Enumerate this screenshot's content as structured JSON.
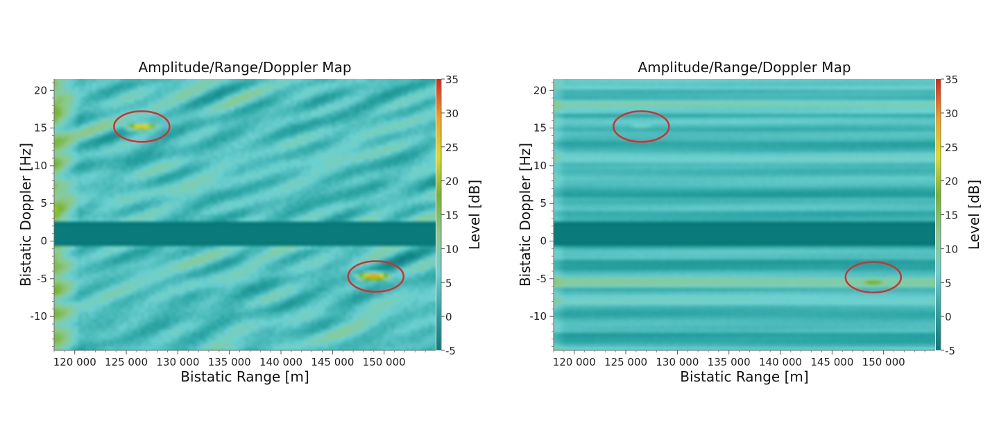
{
  "colors": {
    "background": "#ffffff",
    "ellipse": "#d42f2f",
    "colormap": [
      "#0a7a7a",
      "#2aa3a3",
      "#6cd0d0",
      "#8ec98a",
      "#74b22e",
      "#e0dc1f",
      "#f0a21e",
      "#d8261c"
    ]
  },
  "chart_data": [
    {
      "type": "heatmap",
      "title": "Amplitude/Range/Doppler Map",
      "xlabel": "Bistatic Range [m]",
      "ylabel": "Bistatic Doppler [Hz]",
      "colorbar_label": "Level [dB]",
      "xlim": [
        118000,
        155000
      ],
      "ylim": [
        -14.5,
        21.5
      ],
      "x_ticks": [
        120000,
        125000,
        130000,
        135000,
        140000,
        145000,
        150000
      ],
      "x_tick_labels": [
        "120 000",
        "125 000",
        "130 000",
        "135 000",
        "140 000",
        "145 000",
        "150 000"
      ],
      "y_ticks": [
        20,
        15,
        10,
        5,
        0,
        -5,
        -10
      ],
      "y_tick_labels": [
        "20",
        "15",
        "10",
        "5",
        "0",
        "-5",
        "-10"
      ],
      "colorbar_range": [
        -5,
        35
      ],
      "colorbar_ticks": [
        "35",
        "30",
        "25",
        "20",
        "15",
        "10",
        "5",
        "0",
        "-5"
      ],
      "pattern": "speckle",
      "targets": [
        {
          "range": 126500,
          "doppler": 15.2,
          "level": 26,
          "highlighted": true
        },
        {
          "range": 149000,
          "doppler": -4.7,
          "level": 31,
          "highlighted": true
        }
      ],
      "highlighted_regions": [
        {
          "range": 126500,
          "doppler": 15.2
        },
        {
          "range": 149200,
          "doppler": -4.7
        }
      ]
    },
    {
      "type": "heatmap",
      "title": "Amplitude/Range/Doppler Map",
      "xlabel": "Bistatic Range [m]",
      "ylabel": "Bistatic Doppler [Hz]",
      "colorbar_label": "Level [dB]",
      "xlim": [
        118000,
        155000
      ],
      "ylim": [
        -14.5,
        21.5
      ],
      "x_ticks": [
        120000,
        125000,
        130000,
        135000,
        140000,
        145000,
        150000
      ],
      "x_tick_labels": [
        "120 000",
        "125 000",
        "130 000",
        "135 000",
        "140 000",
        "145 000",
        "150 000"
      ],
      "y_ticks": [
        20,
        15,
        10,
        5,
        0,
        -5,
        -10
      ],
      "y_tick_labels": [
        "20",
        "15",
        "10",
        "5",
        "0",
        "-5",
        "-10"
      ],
      "colorbar_range": [
        -5,
        35
      ],
      "colorbar_ticks": [
        "35",
        "30",
        "25",
        "20",
        "15",
        "10",
        "5",
        "0",
        "-5"
      ],
      "pattern": "horizontal-stripes",
      "targets": [
        {
          "range": 126500,
          "doppler": 15.2,
          "level": 8,
          "highlighted": true
        },
        {
          "range": 149000,
          "doppler": -5.4,
          "level": 19,
          "highlighted": true
        }
      ],
      "highlighted_regions": [
        {
          "range": 126500,
          "doppler": 15.2
        },
        {
          "range": 149000,
          "doppler": -4.8
        }
      ]
    }
  ]
}
